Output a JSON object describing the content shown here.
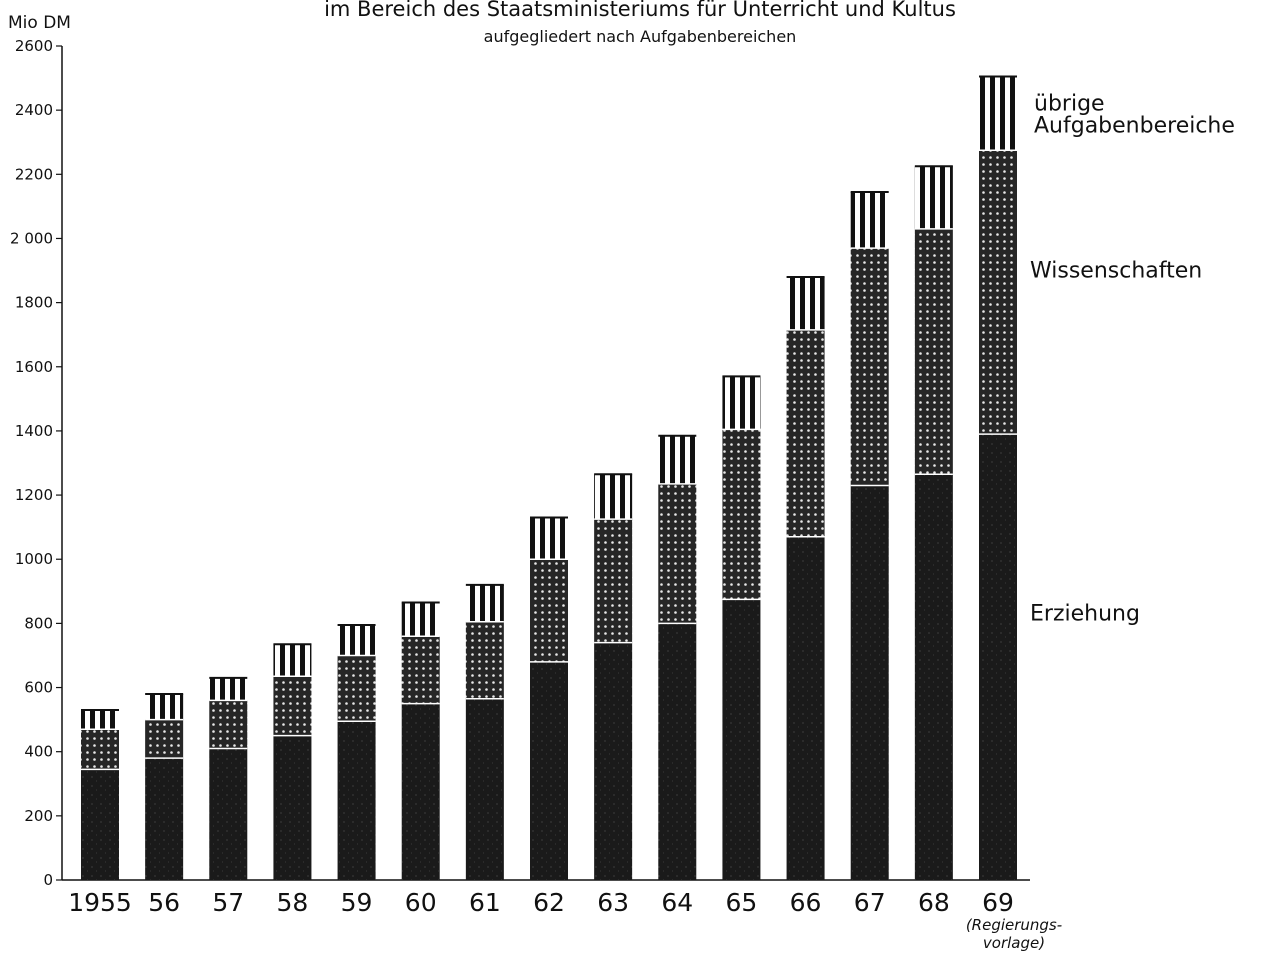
{
  "chart_data": {
    "type": "bar",
    "stacked": true,
    "title": "im Bereich des Staatsministeriums für Unterricht und Kultus",
    "subtitle": "aufgegliedert nach Aufgabenbereichen",
    "ylabel": "Mio DM",
    "ylim": [
      0,
      2600
    ],
    "y_ticks": [
      "0",
      "200",
      "400",
      "600",
      "800",
      "1000",
      "1200",
      "1400",
      "1600",
      "1800",
      "2 000",
      "2200",
      "2400",
      "2600"
    ],
    "y_tick_values": [
      0,
      200,
      400,
      600,
      800,
      1000,
      1200,
      1400,
      1600,
      1800,
      2000,
      2200,
      2400,
      2600
    ],
    "categories": [
      "1955",
      "56",
      "57",
      "58",
      "59",
      "60",
      "61",
      "62",
      "63",
      "64",
      "65",
      "66",
      "67",
      "68",
      "69"
    ],
    "category_note": "(Regierungs-vorlage)",
    "category_note_lines": [
      "(Regierungs-",
      "vorlage)"
    ],
    "grid": false,
    "legend_placement": "right, next to the last bar",
    "series": [
      {
        "name": "Erziehung",
        "pattern": "solid-dark",
        "color": "#1a1a1a",
        "values": [
          345,
          380,
          410,
          450,
          495,
          550,
          565,
          680,
          740,
          800,
          875,
          1070,
          1230,
          1265,
          1390
        ]
      },
      {
        "name": "Wissenschaften",
        "pattern": "dotted",
        "color": "#262626",
        "values": [
          125,
          120,
          150,
          185,
          205,
          210,
          240,
          320,
          385,
          435,
          530,
          645,
          740,
          765,
          885
        ]
      },
      {
        "name": "übrige Aufgabenbereiche",
        "name_lines": [
          "übrige",
          "Aufgabenbereiche"
        ],
        "pattern": "vertical-stripes",
        "color": "#111111",
        "values": [
          60,
          80,
          70,
          100,
          95,
          105,
          115,
          130,
          140,
          150,
          165,
          165,
          175,
          195,
          230
        ]
      }
    ]
  }
}
